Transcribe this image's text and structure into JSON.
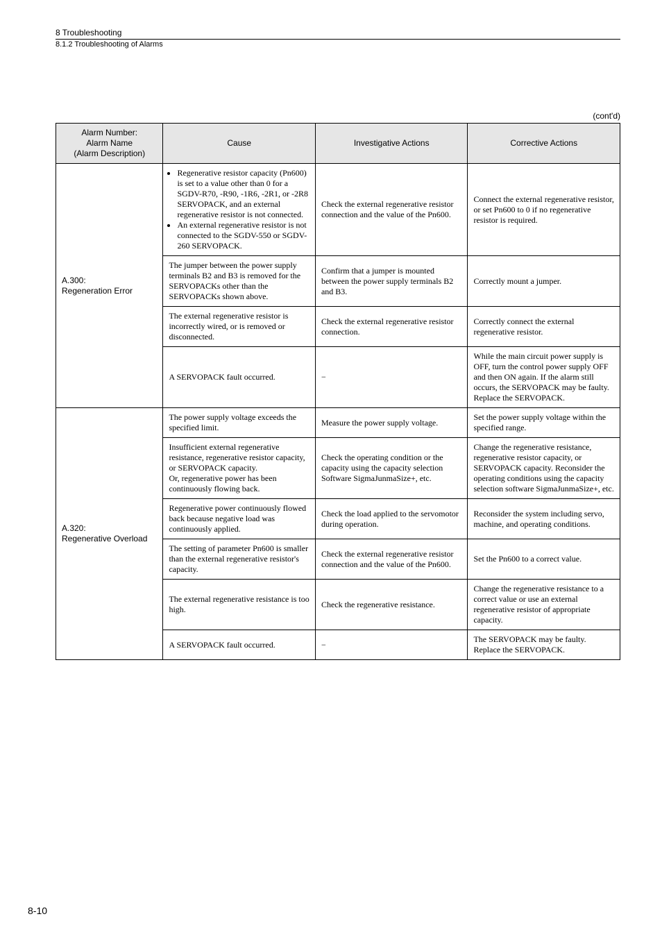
{
  "header": {
    "sectionNumber": "8 Troubleshooting",
    "sectionTitle": "8.1.2 Troubleshooting of Alarms",
    "contd": "(cont'd)"
  },
  "tableHeader": {
    "col1a": "Alarm Number:",
    "col1b": "Alarm Name",
    "col1c": "(Alarm Description)",
    "col2": "Cause",
    "col3": "Investigative Actions",
    "col4": "Corrective Actions"
  },
  "alarm300": {
    "number": "A.300:",
    "name": "Regeneration Error",
    "rows": [
      {
        "causeBullet1": "Regenerative resistor capacity (Pn600) is set to a value other than 0 for a SGDV-R70, -R90, -1R6, -2R1, or -2R8 SERVOPACK, and an external regenerative resistor is not connected.",
        "causeBullet2": "An external regenerative resistor is not connected to the SGDV-550 or SGDV-260 SERVOPACK.",
        "investigate": "Check the external regenerative resistor connection and the value of the Pn600.",
        "corrective": "Connect the external regenerative resistor, or set Pn600 to 0 if no regenerative resistor is required."
      },
      {
        "cause": "The jumper between the power supply terminals B2 and B3 is removed for the SERVOPACKs other than the SERVOPACKs shown above.",
        "investigate": "Confirm that a jumper is mounted between the power supply terminals B2 and B3.",
        "corrective": "Correctly mount a jumper."
      },
      {
        "cause": "The external regenerative resistor is incorrectly wired, or is removed or disconnected.",
        "investigate": "Check the external regenerative resistor connection.",
        "corrective": "Correctly connect the external regenerative resistor."
      },
      {
        "cause": "A SERVOPACK fault occurred.",
        "investigate": "−",
        "corrective": "While the main circuit power supply is OFF, turn the control power supply OFF and then ON again. If the alarm still occurs, the SERVOPACK may be faulty. Replace the SERVOPACK."
      }
    ]
  },
  "alarm320": {
    "number": "A.320:",
    "name": "Regenerative Overload",
    "rows": [
      {
        "cause": "The power supply voltage exceeds the specified limit.",
        "investigate": "Measure the power supply voltage.",
        "corrective": "Set the power supply voltage within the specified range."
      },
      {
        "cause": "Insufficient external regenerative resistance, regenerative resistor capacity, or SERVOPACK capacity.\nOr, regenerative power has been continuously flowing back.",
        "investigate": "Check the operating condition or the capacity using the capacity selection Software SigmaJunmaSize+, etc.",
        "corrective": "Change the regenerative resistance, regenerative resistor capacity, or SERVOPACK capacity. Reconsider the operating conditions using the capacity selection software SigmaJunmaSize+, etc."
      },
      {
        "cause": "Regenerative power continuously flowed back because negative load was continuously applied.",
        "investigate": "Check the load applied to the servomotor during operation.",
        "corrective": "Reconsider the system including servo, machine, and operating conditions."
      },
      {
        "cause": "The setting of parameter Pn600 is smaller than the external regenerative resistor's capacity.",
        "investigate": "Check the external regenerative resistor connection and the value of the Pn600.",
        "corrective": "Set the Pn600 to a correct value."
      },
      {
        "cause": "The external regenerative resistance is too high.",
        "investigate": "Check the regenerative resistance.",
        "corrective": "Change the regenerative resistance to a correct value or use an external regenerative resistor of appropriate capacity."
      },
      {
        "cause": "A SERVOPACK fault occurred.",
        "investigate": "−",
        "corrective": "The SERVOPACK may be faulty. Replace the SERVOPACK."
      }
    ]
  },
  "pageNumber": "8-10"
}
